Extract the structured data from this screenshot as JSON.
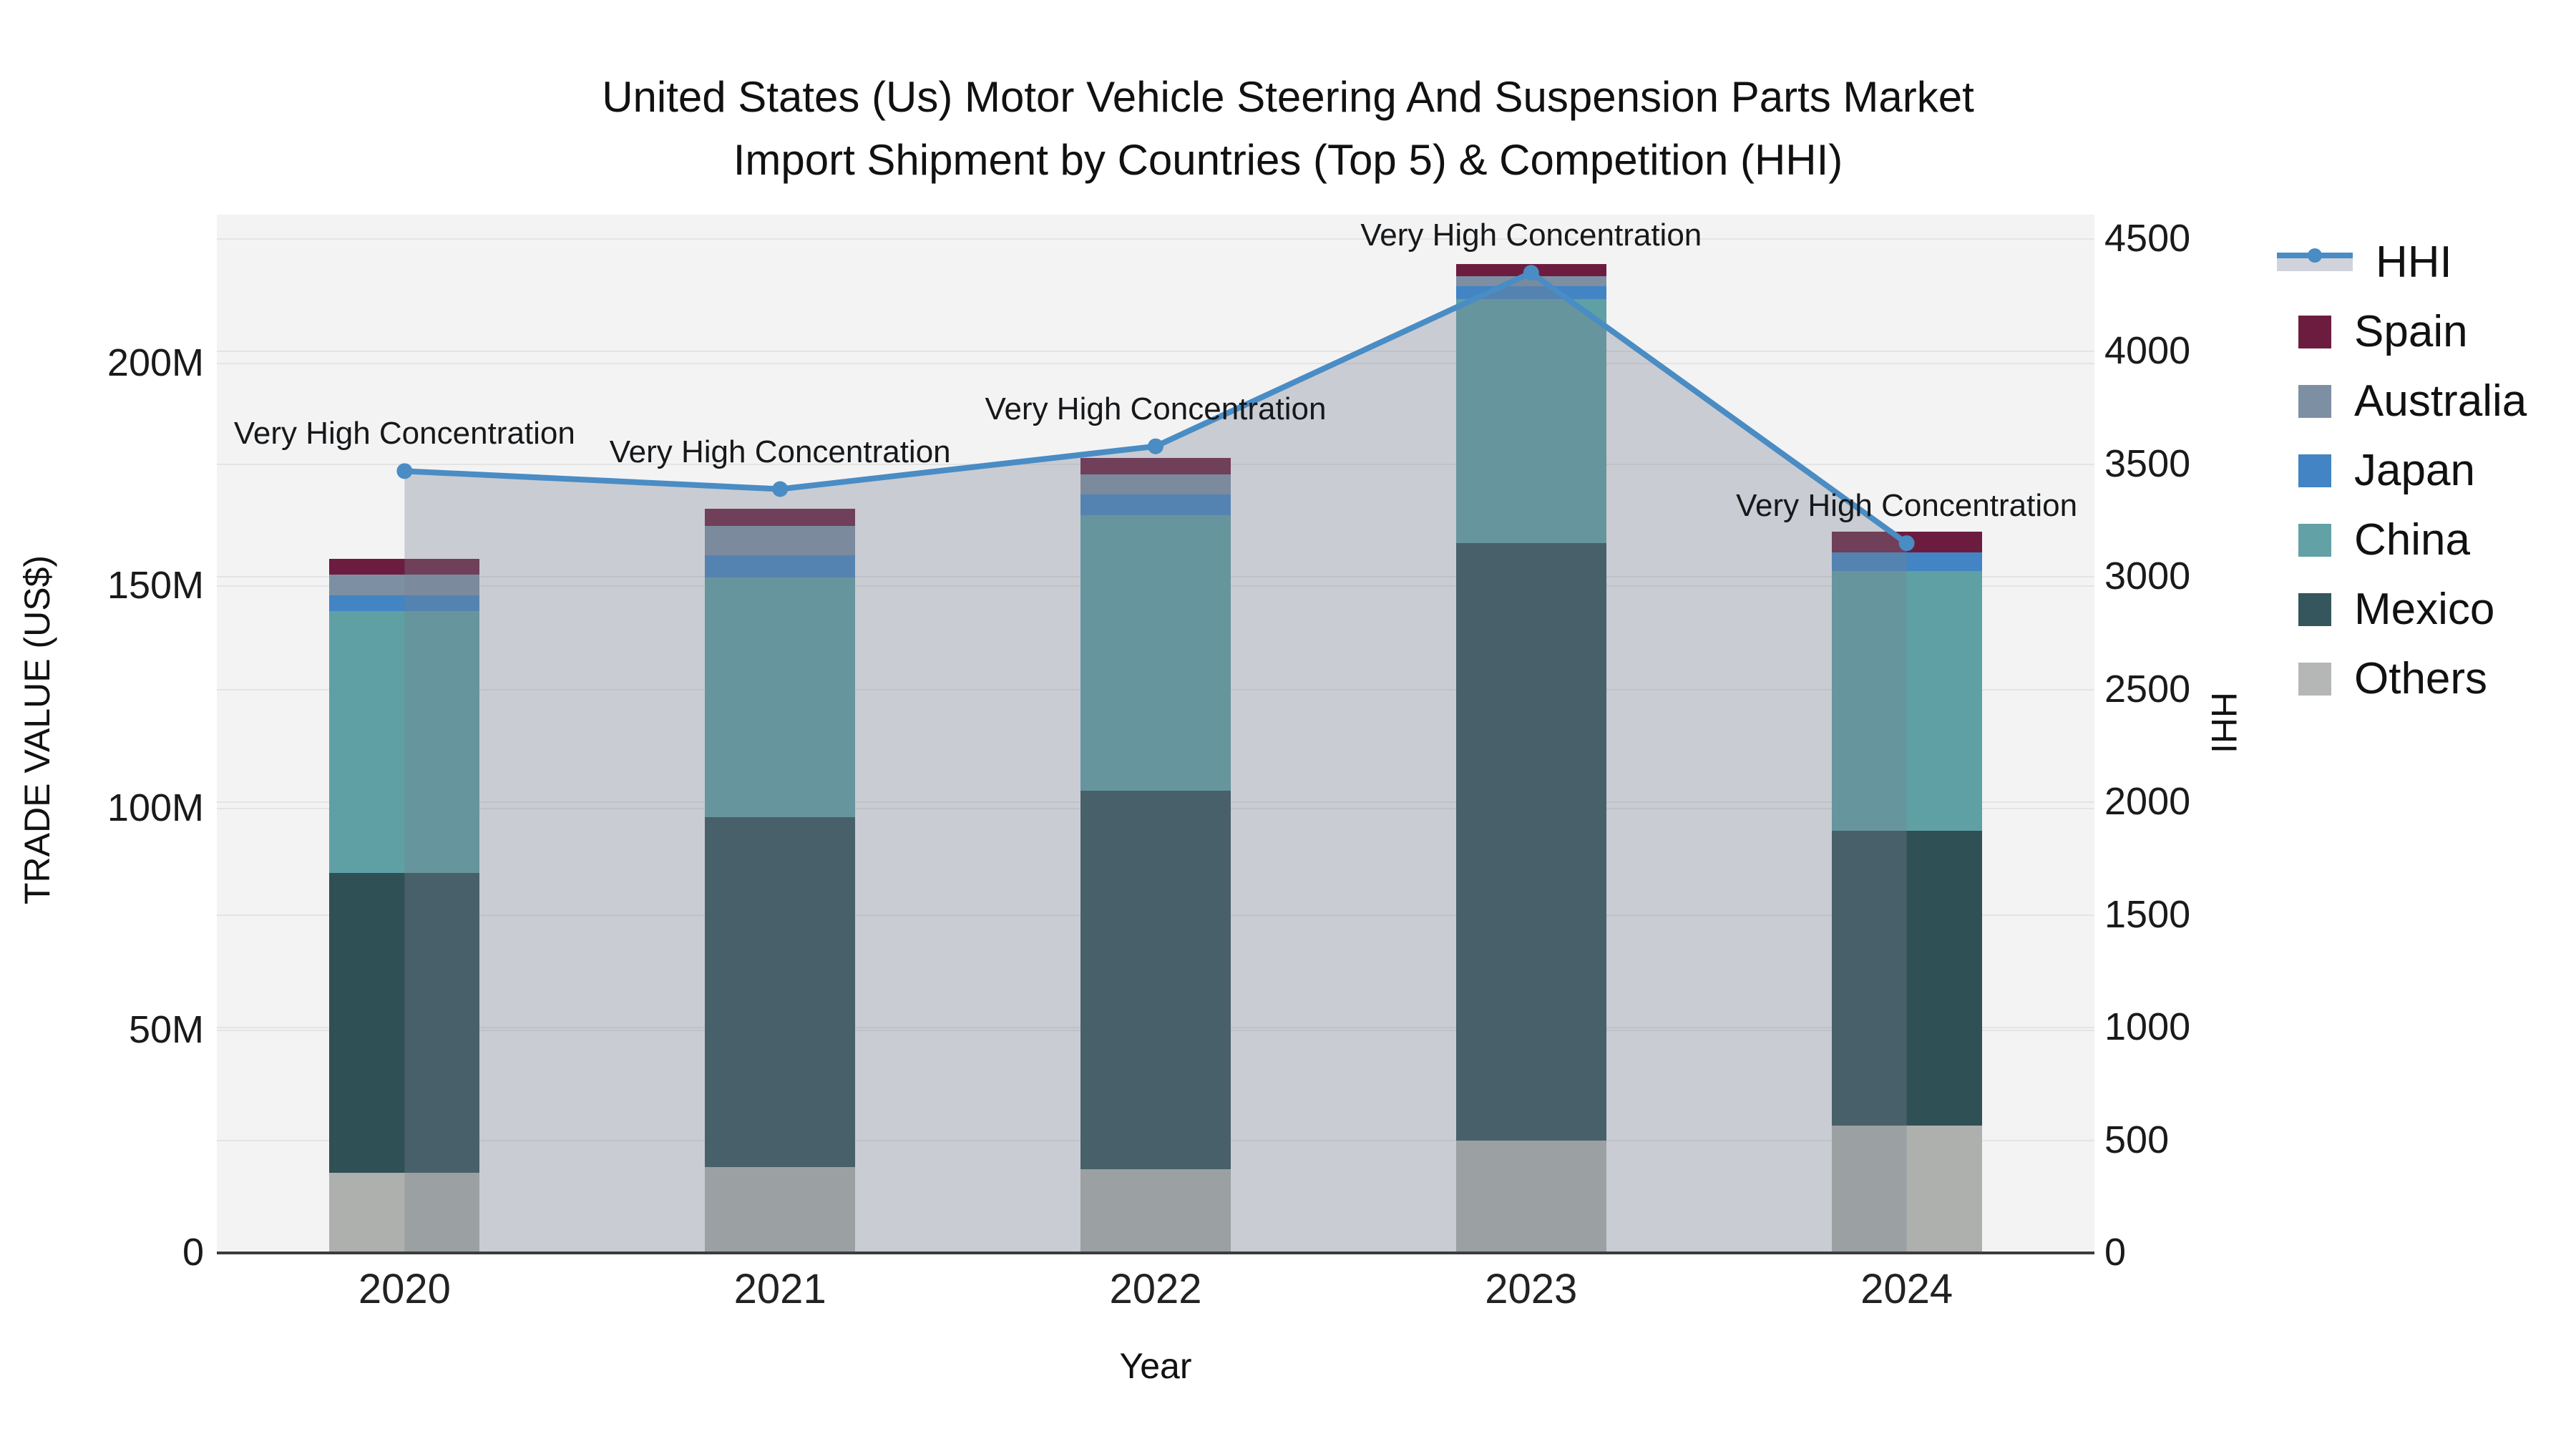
{
  "title": {
    "line1": "United States (Us) Motor Vehicle Steering And Suspension Parts Market",
    "line2": "Import Shipment by Countries (Top 5) & Competition (HHI)"
  },
  "colors": {
    "plot_bg": "#f3f3f4",
    "grid": "#e4e4e4",
    "axis_line": "#3c3c3c",
    "text": "#1a1a1a",
    "hhi_line": "#4a8cc4",
    "hhi_area_fill": "rgba(120,128,145,0.34)",
    "hhi_legend_band": "rgba(150,158,175,0.45)"
  },
  "chart_data": {
    "type": "bar",
    "subtype": "stacked-bar-with-line",
    "categories": [
      "2020",
      "2021",
      "2022",
      "2023",
      "2024"
    ],
    "x_axis": {
      "label": "Year"
    },
    "left_axis": {
      "label": "TRADE VALUE (US$)",
      "tick_labels": [
        "0",
        "50M",
        "100M",
        "150M",
        "200M"
      ],
      "tick_values_M": [
        0,
        50,
        100,
        150,
        200
      ],
      "range_M": [
        0,
        233.5
      ]
    },
    "right_axis": {
      "label": "HHI",
      "tick_labels": [
        "0",
        "500",
        "1000",
        "1500",
        "2000",
        "2500",
        "3000",
        "3500",
        "4000",
        "4500"
      ],
      "tick_values": [
        0,
        500,
        1000,
        1500,
        2000,
        2500,
        3000,
        3500,
        4000,
        4500
      ],
      "range": [
        0,
        4608
      ]
    },
    "bar_series_bottom_to_top": [
      {
        "name": "Others",
        "color": "#aeb0ae",
        "values_M": [
          18.0,
          19.3,
          18.8,
          25.3,
          28.6
        ]
      },
      {
        "name": "Mexico",
        "color": "#2f5055",
        "values_M": [
          67.4,
          78.7,
          85.1,
          134.3,
          66.4
        ]
      },
      {
        "name": "China",
        "color": "#5fa0a5",
        "values_M": [
          58.9,
          53.9,
          62.0,
          54.9,
          58.4
        ]
      },
      {
        "name": "Japan",
        "color": "#4284c4",
        "values_M": [
          3.5,
          5.0,
          4.7,
          2.8,
          4.1
        ]
      },
      {
        "name": "Australia",
        "color": "#7d8fa3",
        "values_M": [
          4.8,
          6.5,
          4.5,
          2.3,
          0.0
        ]
      },
      {
        "name": "Spain",
        "color": "#6c1d3f",
        "values_M": [
          3.4,
          3.9,
          3.7,
          2.8,
          4.7
        ]
      }
    ],
    "line_series": {
      "name": "HHI",
      "color": "#4a8cc4",
      "values": [
        3470,
        3390,
        3580,
        4350,
        3150
      ]
    },
    "annotations": [
      "Very High Concentration",
      "Very High Concentration",
      "Very High Concentration",
      "Very High Concentration",
      "Very High Concentration"
    ],
    "legend": {
      "items": [
        {
          "label": "HHI",
          "type": "line",
          "color": "#4a8cc4"
        },
        {
          "label": "Spain",
          "type": "swatch",
          "color": "#6c1d3f"
        },
        {
          "label": "Australia",
          "type": "swatch",
          "color": "#7d8fa3"
        },
        {
          "label": "Japan",
          "type": "swatch",
          "color": "#4284c4"
        },
        {
          "label": "China",
          "type": "swatch",
          "color": "#62a1a6"
        },
        {
          "label": "Mexico",
          "type": "swatch",
          "color": "#34565c"
        },
        {
          "label": "Others",
          "type": "swatch",
          "color": "#b5b7b6"
        }
      ]
    }
  }
}
